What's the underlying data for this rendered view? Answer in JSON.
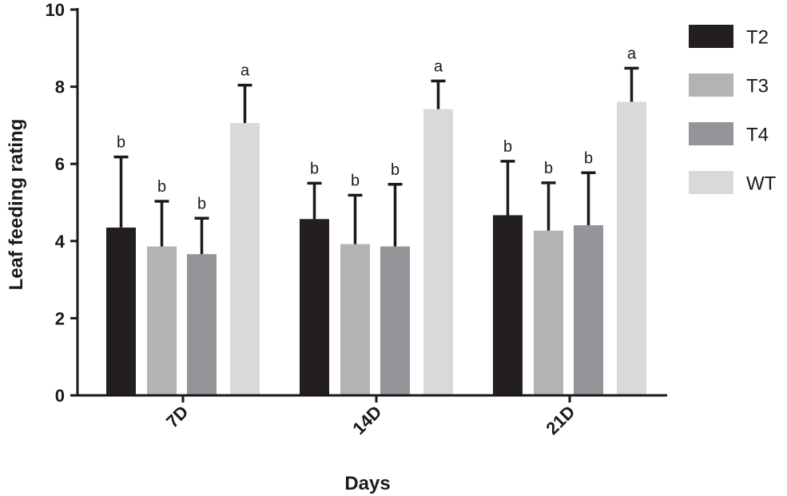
{
  "chart_data": {
    "type": "bar",
    "title": "",
    "xlabel": "Days",
    "ylabel": "Leaf feeding rating",
    "ylim": [
      0,
      10
    ],
    "yticks": [
      "0",
      "2",
      "4",
      "6",
      "8",
      "10"
    ],
    "categories": [
      "7D",
      "14D",
      "21D"
    ],
    "legend_position": "right",
    "series": [
      {
        "name": "T2",
        "color": "#231f20",
        "values": [
          4.35,
          4.57,
          4.67
        ],
        "error": [
          1.83,
          0.93,
          1.4
        ],
        "significance": [
          "b",
          "b",
          "b"
        ]
      },
      {
        "name": "T3",
        "color": "#b2b3b5",
        "values": [
          3.86,
          3.92,
          4.27
        ],
        "error": [
          1.17,
          1.27,
          1.24
        ],
        "significance": [
          "b",
          "b",
          "b"
        ]
      },
      {
        "name": "T4",
        "color": "#939598",
        "values": [
          3.66,
          3.86,
          4.41
        ],
        "error": [
          0.93,
          1.61,
          1.36
        ],
        "significance": [
          "b",
          "b",
          "b"
        ]
      },
      {
        "name": "WT",
        "color": "#d8d9da",
        "values": [
          7.06,
          7.42,
          7.61
        ],
        "error": [
          0.98,
          0.73,
          0.87
        ],
        "significance": [
          "a",
          "a",
          "a"
        ]
      }
    ]
  }
}
